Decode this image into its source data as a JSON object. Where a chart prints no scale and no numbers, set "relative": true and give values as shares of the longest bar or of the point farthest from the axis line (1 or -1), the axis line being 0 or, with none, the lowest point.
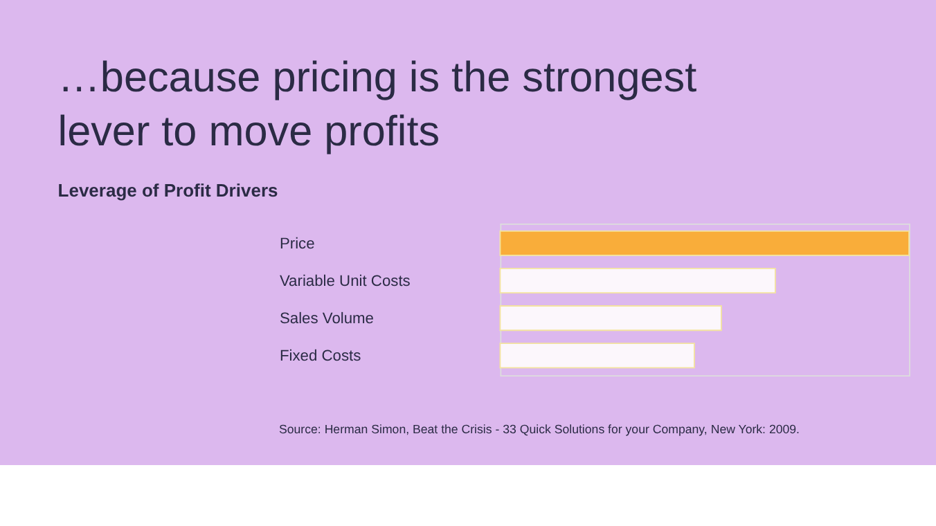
{
  "chart_data": {
    "type": "bar",
    "orientation": "horizontal",
    "relative": true,
    "title": "…because pricing is the strongest lever to move profits",
    "subtitle": "Leverage of Profit Drivers",
    "categories": [
      "Price",
      "Variable Unit Costs",
      "Sales Volume",
      "Fixed Costs"
    ],
    "values": [
      1,
      0.673,
      0.541,
      0.475
    ],
    "colors": [
      "#f9ad3a",
      "#fcf7fc",
      "#fcf7fc",
      "#fcf7fc"
    ],
    "annotations": [
      "Source: Herman Simon, Beat the Crisis - 33 Quick Solutions for your Company, New York: 2009."
    ]
  }
}
